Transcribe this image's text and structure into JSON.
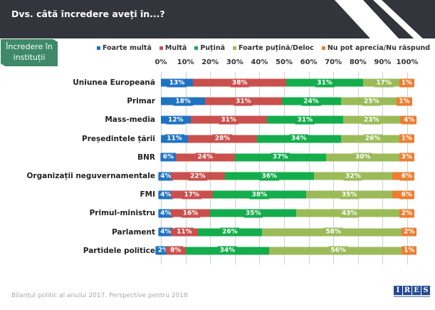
{
  "header": {
    "title": "Dvs. câtă încredere aveți în...?"
  },
  "section_badge": {
    "line1": "Încredere în",
    "line2": "instituții"
  },
  "footer": {
    "text": "Bilanțul politic al anului 2017. Perspective pentru 2018",
    "logo_letters": [
      "I",
      "R",
      "E",
      "S"
    ]
  },
  "colors": {
    "header_bg": "#33353d",
    "badge_bg": "#3e8a68",
    "foarte_multa": "#1f73c3",
    "multa": "#c9504d",
    "putina": "#14ad4c",
    "foarte_putina": "#9bbb59",
    "nu_pot": "#ed7d31"
  },
  "chart_data": {
    "type": "bar",
    "orientation": "horizontal",
    "stacked": true,
    "title": "Dvs. câtă încredere aveți în...?",
    "xlabel": "",
    "ylabel": "",
    "xlim": [
      0,
      100
    ],
    "x_ticks": [
      "0%",
      "10%",
      "20%",
      "30%",
      "40%",
      "50%",
      "60%",
      "70%",
      "80%",
      "90%",
      "100%"
    ],
    "grid": true,
    "legend_position": "top",
    "categories": [
      "Uniunea Europeană",
      "Primar",
      "Mass-media",
      "Președintele țării",
      "BNR",
      "Organizații neguvernamentale",
      "FMI",
      "Primul-ministru",
      "Parlament",
      "Partidele politice"
    ],
    "series": [
      {
        "name": "Foarte multă",
        "color": "#1f73c3",
        "values": [
          13,
          18,
          12,
          11,
          6,
          4,
          4,
          4,
          4,
          2
        ]
      },
      {
        "name": "Multă",
        "color": "#c9504d",
        "values": [
          38,
          31,
          31,
          28,
          24,
          22,
          17,
          16,
          11,
          8
        ]
      },
      {
        "name": "Puțină",
        "color": "#14ad4c",
        "values": [
          31,
          24,
          31,
          34,
          37,
          36,
          38,
          35,
          26,
          34
        ]
      },
      {
        "name": "Foarte puțină/Deloc",
        "color": "#9bbb59",
        "values": [
          17,
          25,
          23,
          26,
          30,
          32,
          35,
          43,
          58,
          56
        ]
      },
      {
        "name": "Nu pot aprecia/Nu răspund",
        "color": "#ed7d31",
        "values": [
          1,
          1,
          4,
          1,
          3,
          6,
          6,
          2,
          2,
          1
        ]
      }
    ]
  }
}
